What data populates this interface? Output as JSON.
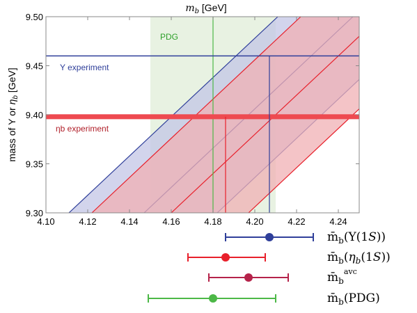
{
  "chart_data": {
    "type": "line",
    "title": "",
    "xlabel": "m_b [GeV]",
    "ylabel": "mass of Υ or η_b [GeV]",
    "xlim": [
      4.1,
      4.25
    ],
    "ylim": [
      9.3,
      9.5
    ],
    "x_ticks": [
      "4.10",
      "4.12",
      "4.14",
      "4.16",
      "4.18",
      "4.20",
      "4.22",
      "4.24"
    ],
    "y_ticks": [
      "9.30",
      "9.35",
      "9.40",
      "9.45",
      "9.50"
    ],
    "colors": {
      "upsilon": "#2f3f9a",
      "etab": "#e8202b",
      "avg": "#b5234a",
      "pdg": "#4cb847",
      "pdg_band": "#e8f2e2",
      "upsilon_band": "#c3c6e6",
      "etab_band": "#f0b0b4",
      "etab_exp_band": "#ee4a50"
    },
    "pdg": {
      "label": "PDG",
      "central": 4.18,
      "band": [
        4.15,
        4.21
      ]
    },
    "upsilon_experiment": {
      "label": "Υ experiment",
      "mass": 9.46,
      "intersection_mb": 4.207
    },
    "etab_experiment": {
      "label": "ηb experiment",
      "mass": 9.398,
      "width": 0.005,
      "intersection_mb": 4.186
    },
    "band_slope_gev_per_gev": 2.0,
    "upsilon_band_lines": [
      {
        "x_at_9_30": 4.111
      },
      {
        "x_at_9_30": 4.147
      },
      {
        "x_at_9_30": 4.182
      }
    ],
    "etab_band_lines": [
      {
        "x_at_9_30": 4.122
      },
      {
        "x_at_9_30": 4.16
      },
      {
        "x_at_9_30": 4.197
      }
    ],
    "points": [
      {
        "name": "m̄_b(Υ(1S))",
        "central": 4.207,
        "low": 4.186,
        "high": 4.228
      },
      {
        "name": "m̄_b(η_b(1S))",
        "central": 4.186,
        "low": 4.168,
        "high": 4.205
      },
      {
        "name": "m̄_b^avc",
        "central": 4.197,
        "low": 4.178,
        "high": 4.216
      },
      {
        "name": "m̄_b(PDG)",
        "central": 4.18,
        "low": 4.149,
        "high": 4.21
      }
    ]
  }
}
